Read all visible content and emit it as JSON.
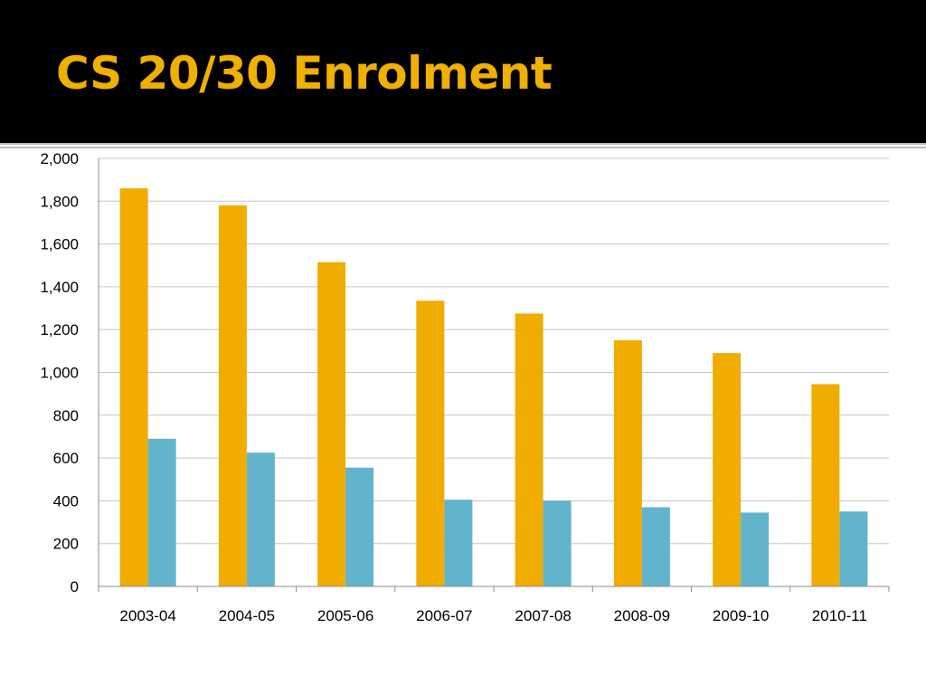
{
  "slide": {
    "title": "CS 20/30 Enrolment"
  },
  "colors": {
    "title_band": "#000000",
    "title_text": "#f0b000",
    "series_1": "#f0ac00",
    "series_2": "#62b4cc",
    "gridline": "#c6c6c6",
    "axis": "#8c8c8c"
  },
  "chart_data": {
    "type": "bar",
    "title": "",
    "xlabel": "",
    "ylabel": "",
    "categories": [
      "2003-04",
      "2004-05",
      "2005-06",
      "2006-07",
      "2007-08",
      "2008-09",
      "2009-10",
      "2010-11"
    ],
    "series": [
      {
        "values": [
          1860,
          1780,
          1515,
          1335,
          1275,
          1150,
          1090,
          945
        ]
      },
      {
        "values": [
          690,
          625,
          555,
          405,
          400,
          370,
          345,
          350
        ]
      }
    ],
    "ylim": [
      0,
      2000
    ],
    "yticks": [
      0,
      200,
      400,
      600,
      800,
      1000,
      1200,
      1400,
      1600,
      1800,
      2000
    ],
    "ytick_labels": [
      "0",
      "200",
      "400",
      "600",
      "800",
      "1,000",
      "1,200",
      "1,400",
      "1,600",
      "1,800",
      "2,000"
    ],
    "grid": true,
    "legend": "none"
  }
}
